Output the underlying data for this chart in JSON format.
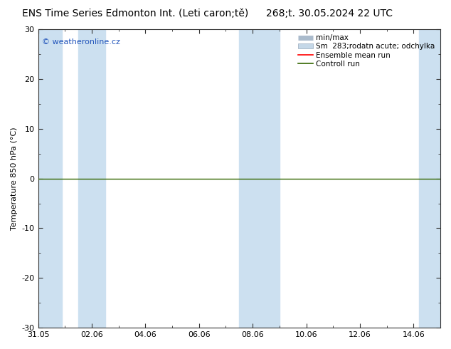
{
  "title_left": "ENS Time Series Edmonton Int. (Leti caron;tě)",
  "title_right": "268;t. 30.05.2024 22 UTC",
  "ylabel": "Temperature 850 hPa (°C)",
  "watermark": "© weatheronline.cz",
  "ylim": [
    -30,
    30
  ],
  "yticks": [
    -30,
    -20,
    -10,
    0,
    10,
    20,
    30
  ],
  "xlim_start": 0,
  "xlim_end": 15,
  "xtick_labels": [
    "31.05",
    "02.06",
    "04.06",
    "06.06",
    "08.06",
    "10.06",
    "12.06",
    "14.06"
  ],
  "xtick_positions": [
    0,
    2,
    4,
    6,
    8,
    10,
    12,
    14
  ],
  "bg_color": "#ffffff",
  "band_color": "#cce0f0",
  "bands": [
    [
      0,
      0.9
    ],
    [
      1.5,
      2.5
    ],
    [
      7.5,
      9.0
    ],
    [
      14.2,
      15
    ]
  ],
  "ctrl_line_color": "#336600",
  "ens_line_color": "#ff0000",
  "minmax_color": "#aabbcc",
  "sm_color": "#c5d8e8",
  "title_fontsize": 10,
  "tick_fontsize": 8,
  "ylabel_fontsize": 8,
  "watermark_color": "#2255bb",
  "watermark_fontsize": 8,
  "legend_fontsize": 7.5,
  "axis_color": "#333333"
}
